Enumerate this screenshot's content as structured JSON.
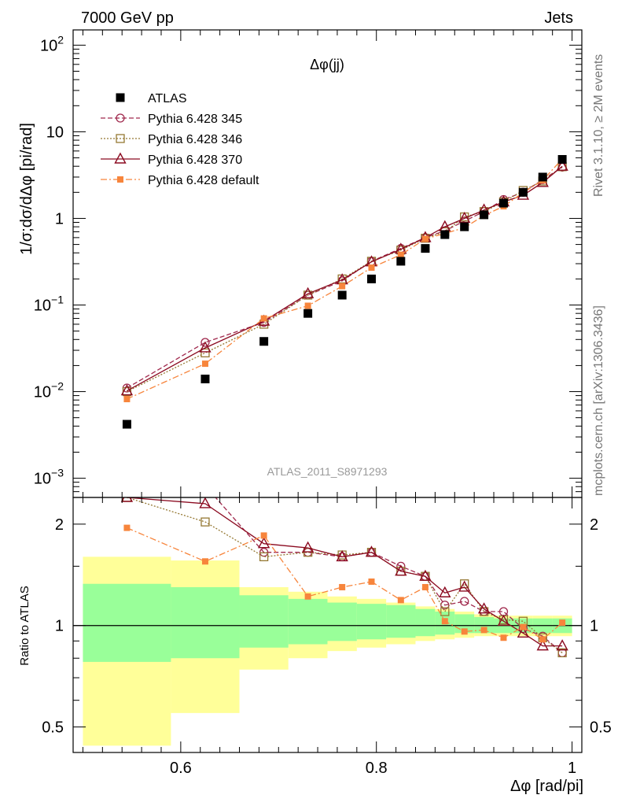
{
  "header": {
    "left": "7000 GeV pp",
    "right": "Jets"
  },
  "title": "Δφ(jj)",
  "analysis_label": "ATLAS_2011_S8971293",
  "side_labels": {
    "rivet": "Rivet 3.1.10, ≥ 2M events",
    "mcplots": "mcplots.cern.ch [arXiv:1306.3436]"
  },
  "colors": {
    "atlas": "#000000",
    "p345": "#a0294d",
    "p346": "#957833",
    "p370": "#8b0a20",
    "pdef": "#f7853c",
    "band_green": "#99ff99",
    "band_yellow": "#ffff99"
  },
  "chart_data": [
    {
      "type": "scatter",
      "panel": "main",
      "ylabel": "1/σ;dσ/dΔφ [pi/rad]",
      "yscale": "log",
      "ylim": [
        0.0006,
        150
      ],
      "xlim": [
        0.49,
        1.01
      ],
      "yticks": [
        {
          "label": "10",
          "sup": "2",
          "v": 100
        },
        {
          "label": "10",
          "sup": "",
          "v": 10
        },
        {
          "label": "1",
          "sup": "",
          "v": 1
        },
        {
          "label": "10",
          "sup": "−1",
          "v": 0.1
        },
        {
          "label": "10",
          "sup": "−2",
          "v": 0.01
        },
        {
          "label": "10",
          "sup": "−3",
          "v": 0.001
        }
      ],
      "x": [
        0.545,
        0.625,
        0.685,
        0.73,
        0.765,
        0.795,
        0.825,
        0.85,
        0.87,
        0.89,
        0.91,
        0.93,
        0.95,
        0.97,
        0.99
      ],
      "series": [
        {
          "name": "ATLAS",
          "key": "atlas",
          "marker": "square-filled",
          "line": "none",
          "values": [
            0.0042,
            0.014,
            0.038,
            0.08,
            0.13,
            0.2,
            0.32,
            0.45,
            0.65,
            0.8,
            1.1,
            1.5,
            2.0,
            3.0,
            4.8
          ]
        },
        {
          "name": "Pythia 6.428 345",
          "key": "p345",
          "marker": "circle-open",
          "line": "dashed",
          "values": [
            0.011,
            0.037,
            0.063,
            0.13,
            0.19,
            0.32,
            0.45,
            0.6,
            0.72,
            0.93,
            1.2,
            1.65,
            2.0,
            2.8,
            3.9
          ]
        },
        {
          "name": "Pythia 6.428 346",
          "key": "p346",
          "marker": "square-open",
          "line": "dotted",
          "values": [
            0.01,
            0.028,
            0.06,
            0.13,
            0.2,
            0.32,
            0.43,
            0.59,
            0.7,
            1.04,
            1.2,
            1.55,
            2.1,
            2.7,
            3.95
          ]
        },
        {
          "name": "Pythia 6.428 370",
          "key": "p370",
          "marker": "triangle-open",
          "line": "solid",
          "values": [
            0.0102,
            0.032,
            0.065,
            0.135,
            0.195,
            0.315,
            0.44,
            0.6,
            0.8,
            1.0,
            1.25,
            1.55,
            1.85,
            2.6,
            4.0
          ]
        },
        {
          "name": "Pythia 6.428 default",
          "key": "pdef",
          "marker": "square-filled-small",
          "line": "dashdot",
          "values": [
            0.0082,
            0.021,
            0.07,
            0.098,
            0.165,
            0.27,
            0.38,
            0.58,
            0.67,
            0.78,
            1.08,
            1.38,
            1.98,
            2.75,
            4.85
          ]
        }
      ]
    },
    {
      "type": "line",
      "panel": "ratio",
      "ylabel": "Ratio to ATLAS",
      "xlabel": "Δφ [rad/pi]",
      "yscale": "log",
      "ylim": [
        0.42,
        2.4
      ],
      "xlim": [
        0.49,
        1.01
      ],
      "yticks": [
        {
          "label": "2",
          "v": 2
        },
        {
          "label": "1",
          "v": 1
        },
        {
          "label": "0.5",
          "v": 0.5
        }
      ],
      "xticks": [
        {
          "label": "0.6",
          "v": 0.6
        },
        {
          "label": "0.8",
          "v": 0.8
        },
        {
          "label": "1",
          "v": 1.0
        }
      ],
      "x": [
        0.545,
        0.625,
        0.685,
        0.73,
        0.765,
        0.795,
        0.825,
        0.85,
        0.87,
        0.89,
        0.91,
        0.93,
        0.95,
        0.97,
        0.99
      ],
      "series": [
        {
          "key": "p345",
          "values": [
            2.6,
            2.6,
            1.65,
            1.65,
            1.6,
            1.65,
            1.5,
            1.4,
            1.15,
            1.18,
            1.1,
            1.1,
            0.98,
            0.93,
            0.83
          ]
        },
        {
          "key": "p346",
          "values": [
            2.4,
            2.03,
            1.6,
            1.65,
            1.62,
            1.65,
            1.45,
            1.4,
            1.1,
            1.33,
            1.1,
            1.04,
            1.03,
            0.92,
            0.83
          ]
        },
        {
          "key": "p370",
          "values": [
            2.4,
            2.3,
            1.75,
            1.7,
            1.6,
            1.65,
            1.45,
            1.4,
            1.25,
            1.3,
            1.12,
            1.03,
            0.95,
            0.87,
            0.87
          ]
        },
        {
          "key": "pdef",
          "values": [
            1.95,
            1.55,
            1.85,
            1.22,
            1.3,
            1.35,
            1.19,
            1.3,
            1.03,
            0.96,
            0.97,
            0.92,
            0.99,
            0.91,
            1.02
          ]
        }
      ],
      "bands": {
        "edges": [
          0.5,
          0.59,
          0.66,
          0.71,
          0.75,
          0.78,
          0.81,
          0.84,
          0.86,
          0.88,
          0.9,
          0.92,
          0.94,
          0.96,
          0.98,
          1.0
        ],
        "green_hi": [
          1.33,
          1.3,
          1.23,
          1.2,
          1.17,
          1.16,
          1.15,
          1.12,
          1.1,
          1.08,
          1.06,
          1.05,
          1.05,
          1.05,
          1.05
        ],
        "green_lo": [
          0.78,
          0.8,
          0.86,
          0.88,
          0.9,
          0.91,
          0.92,
          0.93,
          0.94,
          0.95,
          0.95,
          0.95,
          0.95,
          0.95,
          0.95
        ],
        "yellow_hi": [
          1.6,
          1.56,
          1.3,
          1.26,
          1.22,
          1.2,
          1.17,
          1.14,
          1.12,
          1.1,
          1.08,
          1.07,
          1.07,
          1.07,
          1.07
        ],
        "yellow_lo": [
          0.44,
          0.55,
          0.74,
          0.8,
          0.84,
          0.86,
          0.88,
          0.9,
          0.91,
          0.92,
          0.93,
          0.93,
          0.93,
          0.93,
          0.93
        ]
      }
    }
  ]
}
